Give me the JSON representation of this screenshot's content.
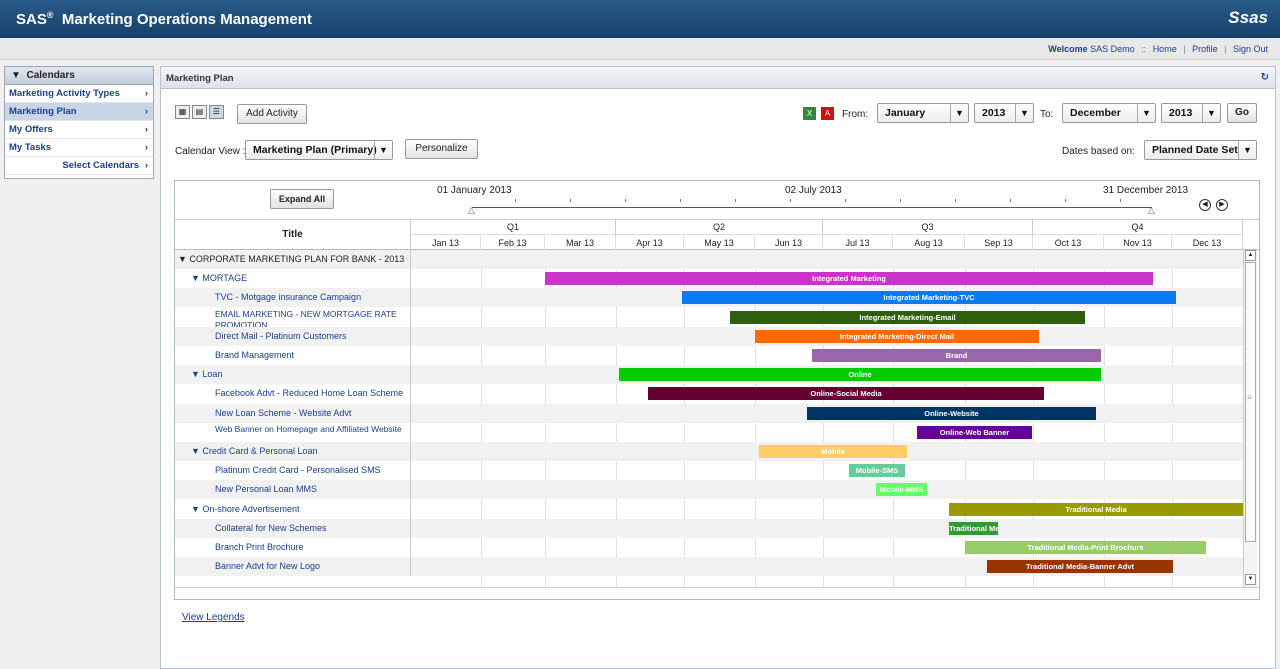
{
  "header": {
    "app_name": "SAS",
    "app_reg": "®",
    "app_title": "Marketing Operations Management",
    "brand": "Ssas"
  },
  "welcome": {
    "welcome_label": "Welcome",
    "user": "SAS Demo",
    "sep": "::",
    "home": "Home",
    "pipe": "|",
    "profile": "Profile",
    "sign_out": "Sign Out"
  },
  "sidebar": {
    "header": "Calendars",
    "items": [
      {
        "label": "Marketing Activity Types"
      },
      {
        "label": "Marketing Plan"
      },
      {
        "label": "My Offers"
      },
      {
        "label": "My Tasks"
      }
    ],
    "select_calendars": "Select Calendars",
    "chevron": "›"
  },
  "main": {
    "panel_title": "Marketing Plan",
    "add_activity": "Add Activity",
    "from_label": "From:",
    "from_month": "January",
    "from_year": "2013",
    "to_label": "To:",
    "to_month": "December",
    "to_year": "2013",
    "go": "Go",
    "calendar_view_label": "Calendar View :",
    "calendar_view_value": "Marketing Plan (Primary)",
    "personalize": "Personalize",
    "dates_based_on_label": "Dates based on:",
    "dates_based_on_value": "Planned Date Set",
    "dropdown_arrow": "▼"
  },
  "gantt": {
    "expand_all": "Expand All",
    "timeline_start": "01 January 2013",
    "timeline_mid": "02 July 2013",
    "timeline_end": "31 December 2013",
    "title_header": "Title",
    "quarters": [
      "Q1",
      "Q2",
      "Q3",
      "Q4"
    ],
    "months": [
      "Jan 13",
      "Feb 13",
      "Mar 13",
      "Apr 13",
      "May 13",
      "Jun 13",
      "Jul 13",
      "Aug 13",
      "Sep 13",
      "Oct 13",
      "Nov 13",
      "Dec 13"
    ],
    "rows": [
      {
        "title": "▼ CORPORATE MARKETING PLAN FOR BANK - 2013",
        "level": 0,
        "bar": null
      },
      {
        "title": "▼ MORTAGE",
        "level": 1,
        "bar": {
          "label": "Integrated Marketing",
          "color": "#cc33cc"
        }
      },
      {
        "title": "TVC - Motgage insurance Campaign",
        "level": 2,
        "bar": {
          "label": "Integrated Marketing-TVC",
          "color": "#0a7af5"
        }
      },
      {
        "title": "EMAIL MARKETING - NEW MORTGAGE RATE PROMOTION",
        "level": 2,
        "bar": {
          "label": "Integrated Marketing-Email",
          "color": "#2e5e0e"
        }
      },
      {
        "title": "Direct Mail - Platinum Customers",
        "level": 2,
        "bar": {
          "label": "Integrated Marketing-Direct Mail",
          "color": "#ff6a00"
        }
      },
      {
        "title": "Brand Management",
        "level": 2,
        "bar": {
          "label": "Brand",
          "color": "#9966aa"
        }
      },
      {
        "title": "▼ Loan",
        "level": 1,
        "bar": {
          "label": "Online",
          "color": "#00cc00"
        }
      },
      {
        "title": "Facebook Advt - Reduced Home Loan Scheme",
        "level": 2,
        "bar": {
          "label": "Online-Social Media",
          "color": "#660033"
        }
      },
      {
        "title": "New Loan Scheme - Website Advt",
        "level": 2,
        "bar": {
          "label": "Online-Website",
          "color": "#003366"
        }
      },
      {
        "title": "Web Banner on Homepage and Affiliated Website",
        "level": 2,
        "bar": {
          "label": "Online-Web Banner",
          "color": "#660099"
        }
      },
      {
        "title": "▼ Credit Card & Personal Loan",
        "level": 1,
        "bar": {
          "label": "Mobile",
          "color": "#ffcc66"
        }
      },
      {
        "title": "Platinum Credit Card - Personalised SMS",
        "level": 2,
        "bar": {
          "label": "Mobile-SMS",
          "color": "#66cc99"
        }
      },
      {
        "title": "New Personal Loan MMS",
        "level": 2,
        "bar": {
          "label": "Mobile-MMS",
          "color": "#66ff66"
        }
      },
      {
        "title": "▼ On-shore Advertisement",
        "level": 1,
        "bar": {
          "label": "Traditional Media",
          "color": "#999900"
        }
      },
      {
        "title": "Collateral for New Schemes",
        "level": 2,
        "bar": {
          "label": "Traditional Mex",
          "color": "#339933"
        }
      },
      {
        "title": "Branch Print Brochure",
        "level": 2,
        "bar": {
          "label": "Traditional Media-Print Brochure",
          "color": "#99cc66"
        }
      },
      {
        "title": "Banner Advt for New Logo",
        "level": 2,
        "bar": {
          "label": "Traditional Media-Banner Advt",
          "color": "#993300"
        }
      }
    ]
  },
  "footer": {
    "view_legends": "View Legends"
  },
  "icons": {
    "collapse": "▼",
    "refresh": "↻",
    "prev": "◀",
    "next": "▶",
    "handle": "△",
    "scroll_up": "▲",
    "scroll_down": "▼",
    "grip": "≡"
  }
}
